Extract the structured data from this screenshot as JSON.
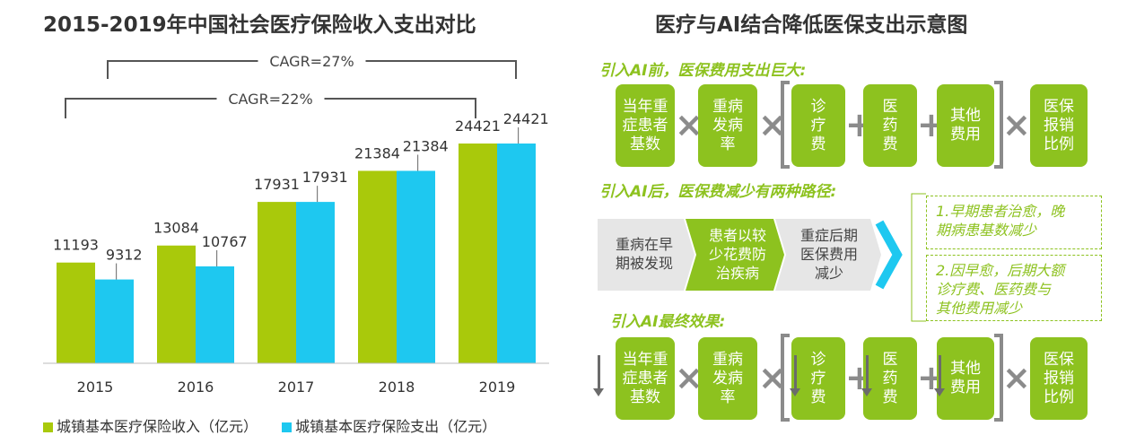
{
  "left_title": "2015-2019年中国社会医疗保险收入支出对比",
  "right_title": "医疗与AI结合降低医保支出示意图",
  "chart_data": {
    "type": "bar",
    "title": "2015-2019年中国社会医疗保险收入支出对比",
    "categories": [
      "2015",
      "2016",
      "2017",
      "2018",
      "2019"
    ],
    "series": [
      {
        "name": "城镇基本医疗保险收入（亿元）",
        "values": [
          11193,
          13084,
          17931,
          21384,
          24421
        ],
        "color": "#a9c90b"
      },
      {
        "name": "城镇基本医疗保险支出（亿元）",
        "values": [
          9312,
          10767,
          17931,
          21384,
          24421
        ],
        "color": "#1ec8f0"
      }
    ],
    "annotations": [
      "CAGR=27%",
      "CAGR=22%"
    ],
    "ylim": [
      0,
      26000
    ],
    "grid": false,
    "legend_position": "bottom"
  },
  "diagram": {
    "section1_label": "引入AI前，医保费用支出巨大:",
    "section2_label": "引入AI后，医保费减少有两种路径:",
    "section3_label": "引入AI最终效果:",
    "factors": [
      [
        "当年重",
        "症患者",
        "基数"
      ],
      [
        "重病",
        "发病",
        "率"
      ],
      [
        "诊",
        "疗",
        "费"
      ],
      [
        "医",
        "药",
        "费"
      ],
      [
        "其他",
        "费用"
      ],
      [
        "医保",
        "报销",
        "比例"
      ]
    ],
    "operators": {
      "multiply": "×",
      "plus": "+"
    },
    "path_steps": [
      [
        "重病在早",
        "期被发现"
      ],
      [
        "患者以较",
        "少花费防",
        "治疾病"
      ],
      [
        "重症后期",
        "医保费用",
        "减少"
      ]
    ],
    "outcomes": [
      [
        "1.早期患者治愈，晚",
        "期病患基数减少"
      ],
      [
        "2.因早愈，后期大额",
        "诊疗费、医药费与",
        "其他费用减少"
      ]
    ],
    "colors": {
      "accent": "#8dc21f",
      "operator": "#8b8b8b",
      "arrow_cyan": "#1ec8f0"
    }
  }
}
